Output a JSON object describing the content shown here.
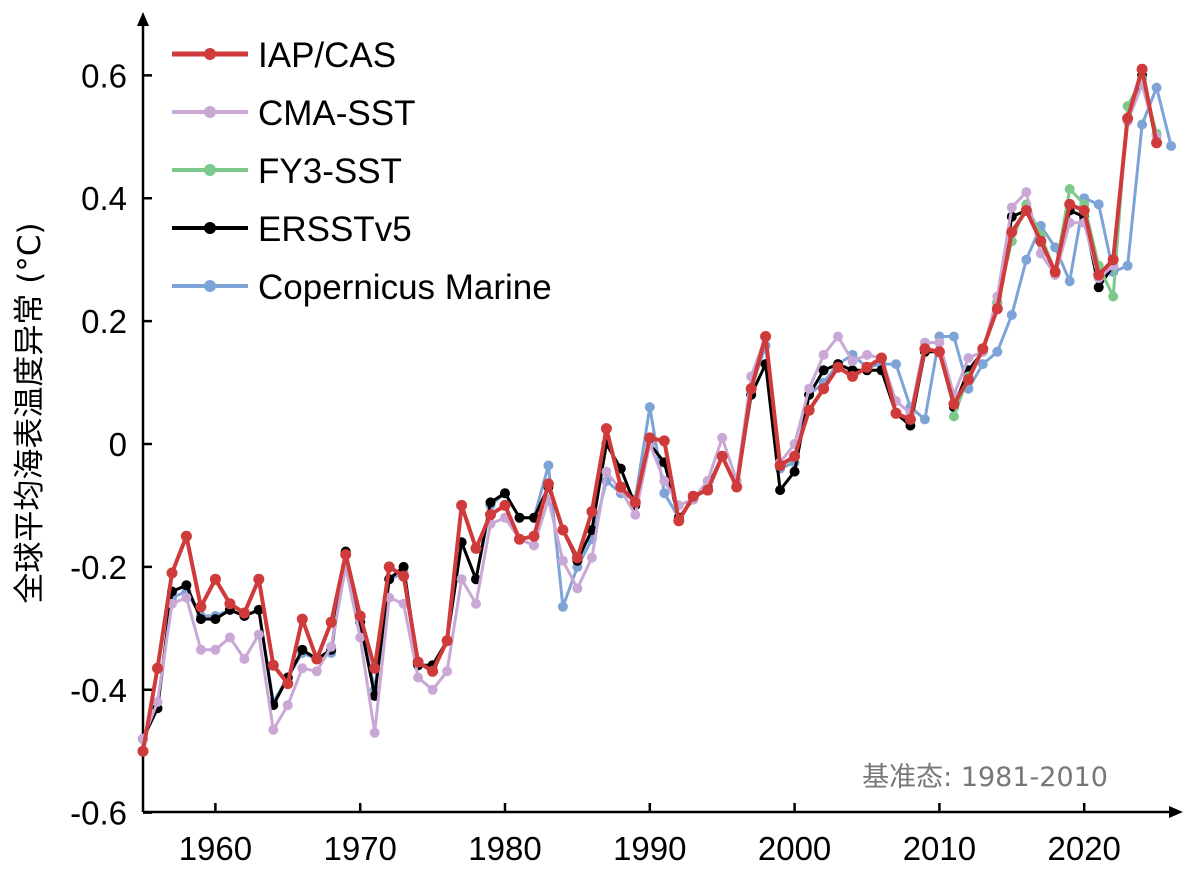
{
  "chart_data": {
    "type": "line",
    "ylabel": "全球平均海表温度异常 (°C)",
    "xlabel": "",
    "xlim": [
      1955,
      2027
    ],
    "ylim": [
      -0.6,
      0.7
    ],
    "x_ticks": [
      1960,
      1970,
      1980,
      1990,
      2000,
      2010,
      2020
    ],
    "y_ticks": [
      -0.6,
      -0.4,
      -0.2,
      0,
      0.2,
      0.4,
      0.6
    ],
    "y_tick_labels": [
      "-0.6",
      "-0.4",
      "-0.2",
      "0",
      "0.2",
      "0.4",
      "0.6"
    ],
    "annotation": "基准态: 1981-2010",
    "grid": false,
    "legend_position": "top-left",
    "series": [
      {
        "name": "Copernicus Marine",
        "color": "#7ea3d6",
        "x_start": 1955,
        "values": [
          -0.48,
          -0.43,
          -0.25,
          -0.24,
          -0.28,
          -0.28,
          -0.27,
          -0.28,
          -0.27,
          -0.42,
          -0.38,
          -0.34,
          -0.35,
          -0.34,
          -0.18,
          -0.29,
          -0.4,
          -0.22,
          -0.21,
          -0.36,
          -0.36,
          -0.32,
          -0.16,
          -0.22,
          -0.1,
          -0.08,
          -0.12,
          -0.12,
          -0.035,
          -0.265,
          -0.2,
          -0.155,
          -0.06,
          -0.08,
          -0.09,
          0.06,
          -0.08,
          -0.12,
          -0.09,
          -0.07,
          -0.02,
          -0.07,
          0.09,
          0.16,
          -0.04,
          -0.03,
          0.08,
          0.1,
          0.13,
          0.145,
          0.125,
          0.13,
          0.13,
          0.06,
          0.04,
          0.175,
          0.175,
          0.09,
          0.13,
          0.15,
          0.21,
          0.3,
          0.355,
          0.32,
          0.265,
          0.4,
          0.39,
          0.28,
          0.29,
          0.52,
          0.58,
          0.485
        ]
      },
      {
        "name": "ERSSTv5",
        "color": "#000000",
        "x_start": 1955,
        "values": [
          -0.48,
          -0.43,
          -0.24,
          -0.23,
          -0.285,
          -0.285,
          -0.27,
          -0.28,
          -0.27,
          -0.425,
          -0.38,
          -0.335,
          -0.35,
          -0.335,
          -0.175,
          -0.29,
          -0.41,
          -0.22,
          -0.2,
          -0.36,
          -0.36,
          -0.32,
          -0.16,
          -0.22,
          -0.095,
          -0.08,
          -0.12,
          -0.12,
          -0.07,
          -0.14,
          -0.19,
          -0.14,
          0.0,
          -0.04,
          -0.1,
          0.0,
          -0.03,
          -0.12,
          -0.09,
          -0.07,
          -0.02,
          -0.07,
          0.08,
          0.13,
          -0.075,
          -0.045,
          0.08,
          0.12,
          0.13,
          0.12,
          0.12,
          0.12,
          0.05,
          0.03,
          0.15,
          0.15,
          0.06,
          0.12,
          0.15,
          0.23,
          0.37,
          0.38,
          0.33,
          0.28,
          0.38,
          0.37,
          0.255,
          0.29,
          0.53,
          0.6,
          0.49
        ]
      },
      {
        "name": "FY3-SST",
        "color": "#7cc98b",
        "x_start": 2011,
        "values": [
          0.045,
          0.11,
          0.15,
          0.23,
          0.33,
          0.39,
          0.34,
          0.28,
          0.415,
          0.39,
          0.29,
          0.24,
          0.55,
          0.595,
          0.505
        ]
      },
      {
        "name": "CMA-SST",
        "color": "#c9a8d6",
        "x_start": 1955,
        "values": [
          -0.48,
          -0.42,
          -0.26,
          -0.25,
          -0.335,
          -0.335,
          -0.315,
          -0.35,
          -0.31,
          -0.465,
          -0.425,
          -0.365,
          -0.37,
          -0.33,
          -0.2,
          -0.315,
          -0.47,
          -0.25,
          -0.26,
          -0.38,
          -0.4,
          -0.37,
          -0.22,
          -0.26,
          -0.13,
          -0.12,
          -0.155,
          -0.165,
          -0.09,
          -0.19,
          -0.235,
          -0.185,
          -0.045,
          -0.075,
          -0.115,
          0.0,
          -0.06,
          -0.1,
          -0.09,
          -0.06,
          0.01,
          -0.06,
          0.11,
          0.175,
          -0.03,
          0.0,
          0.09,
          0.145,
          0.175,
          0.135,
          0.145,
          0.14,
          0.07,
          0.05,
          0.165,
          0.165,
          0.08,
          0.14,
          0.15,
          0.24,
          0.385,
          0.41,
          0.31,
          0.275,
          0.36,
          0.36,
          0.27,
          0.29,
          0.525,
          0.585,
          0.5
        ]
      },
      {
        "name": "IAP/CAS",
        "color": "#cf3b3b",
        "x_start": 1955,
        "values": [
          -0.5,
          -0.365,
          -0.21,
          -0.15,
          -0.265,
          -0.22,
          -0.26,
          -0.275,
          -0.22,
          -0.36,
          -0.39,
          -0.285,
          -0.35,
          -0.29,
          -0.18,
          -0.28,
          -0.365,
          -0.2,
          -0.215,
          -0.355,
          -0.37,
          -0.32,
          -0.1,
          -0.17,
          -0.115,
          -0.1,
          -0.155,
          -0.15,
          -0.065,
          -0.14,
          -0.185,
          -0.11,
          0.025,
          -0.07,
          -0.095,
          0.01,
          0.005,
          -0.125,
          -0.085,
          -0.075,
          -0.02,
          -0.07,
          0.09,
          0.175,
          -0.035,
          -0.02,
          0.055,
          0.09,
          0.125,
          0.11,
          0.125,
          0.14,
          0.05,
          0.04,
          0.155,
          0.15,
          0.065,
          0.105,
          0.155,
          0.22,
          0.345,
          0.38,
          0.33,
          0.28,
          0.39,
          0.38,
          0.275,
          0.3,
          0.53,
          0.61,
          0.49
        ]
      }
    ],
    "legend": [
      {
        "name": "IAP/CAS",
        "color": "#cf3b3b"
      },
      {
        "name": "CMA-SST",
        "color": "#c9a8d6"
      },
      {
        "name": "FY3-SST",
        "color": "#7cc98b"
      },
      {
        "name": "ERSSTv5",
        "color": "#000000"
      },
      {
        "name": "Copernicus Marine",
        "color": "#7ea3d6"
      }
    ]
  }
}
